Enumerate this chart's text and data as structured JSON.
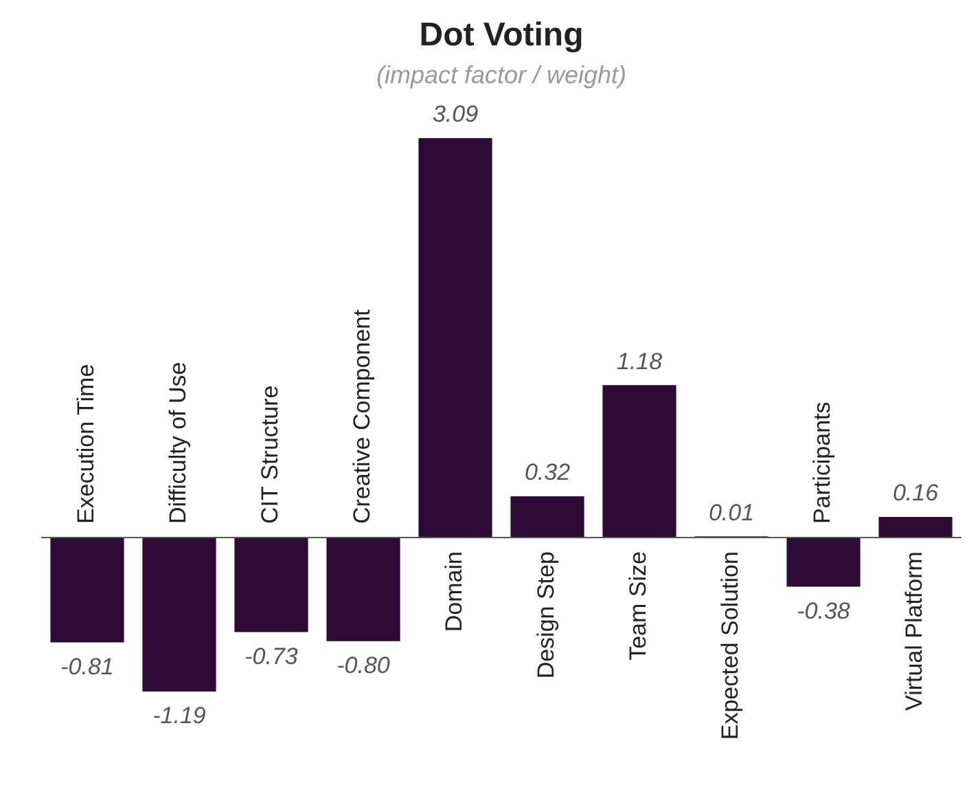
{
  "chart_data": {
    "type": "bar",
    "title": "Dot Voting",
    "subtitle": "(impact factor / weight)",
    "categories": [
      "Execution Time",
      "Difficulty of Use",
      "CIT Structure",
      "Creative Component",
      "Domain",
      "Design Step",
      "Team Size",
      "Expected Solution",
      "Participants",
      "Virtual Platform"
    ],
    "values": [
      -0.81,
      -1.19,
      -0.73,
      -0.8,
      3.09,
      0.32,
      1.18,
      0.01,
      -0.38,
      0.16
    ],
    "value_labels": [
      "-0.81",
      "-1.19",
      "-0.73",
      "-0.80",
      "3.09",
      "0.32",
      "1.18",
      "0.01",
      "-0.38",
      "0.16"
    ],
    "color": "#2e0a36",
    "legend": false
  }
}
